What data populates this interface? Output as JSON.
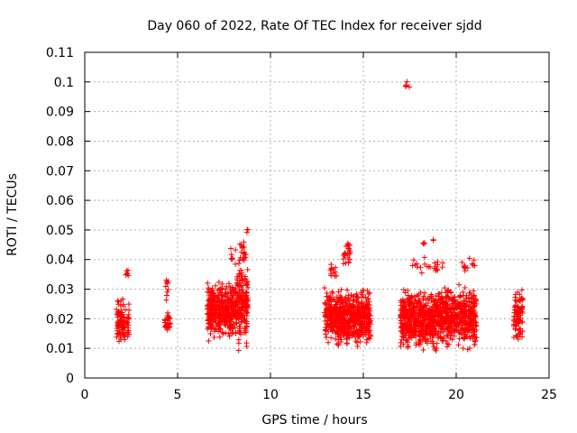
{
  "chart_data": {
    "type": "scatter",
    "title": "Day 060 of 2022, Rate Of TEC Index for receiver sjdd",
    "xlabel": "GPS time / hours",
    "ylabel": "ROTI / TECUs",
    "xlim": [
      0,
      25
    ],
    "ylim": [
      0,
      0.11
    ],
    "grid": true,
    "x_ticks": [
      "0",
      "5",
      "10",
      "15",
      "20",
      "25"
    ],
    "y_ticks": [
      "0",
      "0.01",
      "0.02",
      "0.03",
      "0.04",
      "0.05",
      "0.06",
      "0.07",
      "0.08",
      "0.09",
      "0.1",
      "0.11"
    ],
    "marker": "plus",
    "color": "#ff0000",
    "series": [
      {
        "name": "ROTI",
        "clusters": [
          {
            "x_range": [
              1.7,
              2.1
            ],
            "y_range": [
              0.009,
              0.031
            ],
            "count": 80
          },
          {
            "x_range": [
              2.1,
              2.4
            ],
            "y_range": [
              0.01,
              0.028
            ],
            "count": 30
          },
          {
            "x_range": [
              2.2,
              2.35
            ],
            "y_range": [
              0.033,
              0.037
            ],
            "count": 6
          },
          {
            "x_range": [
              4.3,
              4.6
            ],
            "y_range": [
              0.014,
              0.024
            ],
            "count": 30
          },
          {
            "x_range": [
              4.35,
              4.5
            ],
            "y_range": [
              0.026,
              0.036
            ],
            "count": 10
          },
          {
            "x_range": [
              6.6,
              7.4
            ],
            "y_range": [
              0.01,
              0.036
            ],
            "count": 200
          },
          {
            "x_range": [
              7.4,
              8.2
            ],
            "y_range": [
              0.01,
              0.035
            ],
            "count": 180
          },
          {
            "x_range": [
              8.2,
              8.8
            ],
            "y_range": [
              0.008,
              0.042
            ],
            "count": 160
          },
          {
            "x_range": [
              7.8,
              8.8
            ],
            "y_range": [
              0.036,
              0.048
            ],
            "count": 25
          },
          {
            "x_range": [
              8.65,
              8.8
            ],
            "y_range": [
              0.048,
              0.053
            ],
            "count": 3
          },
          {
            "x_range": [
              12.9,
              13.5
            ],
            "y_range": [
              0.01,
              0.032
            ],
            "count": 130
          },
          {
            "x_range": [
              13.5,
              14.5
            ],
            "y_range": [
              0.009,
              0.032
            ],
            "count": 260
          },
          {
            "x_range": [
              14.5,
              15.4
            ],
            "y_range": [
              0.008,
              0.033
            ],
            "count": 220
          },
          {
            "x_range": [
              13.9,
              14.3
            ],
            "y_range": [
              0.033,
              0.05
            ],
            "count": 25
          },
          {
            "x_range": [
              13.2,
              13.6
            ],
            "y_range": [
              0.032,
              0.039
            ],
            "count": 12
          },
          {
            "x_range": [
              17.25,
              17.55
            ],
            "y_range": [
              0.097,
              0.101
            ],
            "count": 5
          },
          {
            "x_range": [
              17.0,
              18.0
            ],
            "y_range": [
              0.008,
              0.032
            ],
            "count": 260
          },
          {
            "x_range": [
              18.0,
              19.0
            ],
            "y_range": [
              0.006,
              0.033
            ],
            "count": 270
          },
          {
            "x_range": [
              19.0,
              20.0
            ],
            "y_range": [
              0.008,
              0.033
            ],
            "count": 260
          },
          {
            "x_range": [
              20.0,
              21.1
            ],
            "y_range": [
              0.008,
              0.034
            ],
            "count": 240
          },
          {
            "x_range": [
              17.4,
              19.5
            ],
            "y_range": [
              0.034,
              0.041
            ],
            "count": 22
          },
          {
            "x_range": [
              20.3,
              21.0
            ],
            "y_range": [
              0.034,
              0.043
            ],
            "count": 14
          },
          {
            "x_range": [
              18.1,
              18.4
            ],
            "y_range": [
              0.045,
              0.046
            ],
            "count": 3
          },
          {
            "x_range": [
              18.75,
              18.85
            ],
            "y_range": [
              0.046,
              0.047
            ],
            "count": 2
          },
          {
            "x_range": [
              23.1,
              23.6
            ],
            "y_range": [
              0.009,
              0.034
            ],
            "count": 90
          }
        ]
      }
    ]
  }
}
